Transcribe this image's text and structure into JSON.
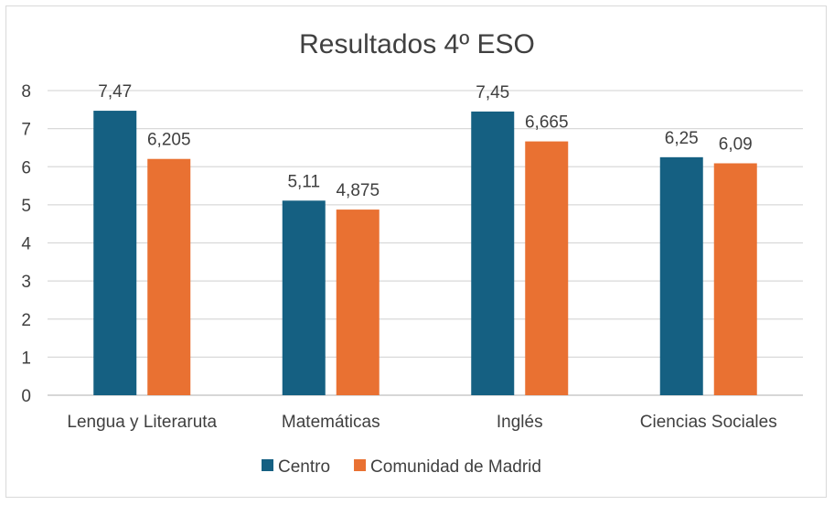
{
  "chart_data": {
    "type": "bar",
    "title": "Resultados 4º ESO",
    "categories": [
      "Lengua y Literaruta",
      "Matemáticas",
      "Inglés",
      "Ciencias Sociales"
    ],
    "series": [
      {
        "name": "Centro",
        "values": [
          7.47,
          5.11,
          7.45,
          6.25
        ],
        "labels": [
          "7,47",
          "5,11",
          "7,45",
          "6,25"
        ],
        "color": "#156082"
      },
      {
        "name": "Comunidad de Madrid",
        "values": [
          6.205,
          4.875,
          6.665,
          6.09
        ],
        "labels": [
          "6,205",
          "4,875",
          "6,665",
          "6,09"
        ],
        "color": "#E97132"
      }
    ],
    "ylim": [
      0,
      8
    ],
    "yticks": [
      0,
      1,
      2,
      3,
      4,
      5,
      6,
      7,
      8
    ],
    "xlabel": "",
    "ylabel": "",
    "grid": true,
    "legend": "bottom"
  }
}
